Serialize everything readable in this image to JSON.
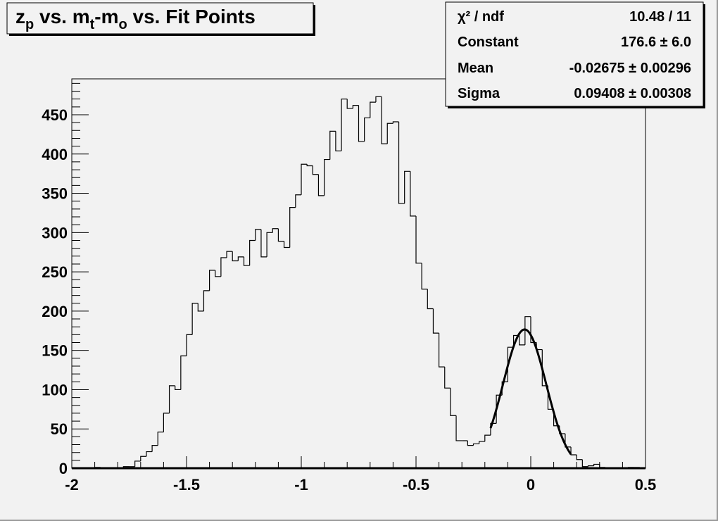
{
  "chart_data": {
    "type": "bar",
    "histogram": true,
    "title_segments": [
      {
        "text": "z",
        "sub": false
      },
      {
        "text": "p",
        "sub": true
      },
      {
        "text": " vs. m",
        "sub": false
      },
      {
        "text": "t",
        "sub": true
      },
      {
        "text": "-m",
        "sub": false
      },
      {
        "text": "o",
        "sub": true
      },
      {
        "text": " vs. Fit Points",
        "sub": false
      }
    ],
    "xlabel": "",
    "ylabel": "",
    "xlim": [
      -2,
      0.5
    ],
    "ylim": [
      0,
      495.7
    ],
    "bin_width": 0.025,
    "x_ticks": [
      "-2",
      "-1.5",
      "-1",
      "-0.5",
      "0",
      "0.5"
    ],
    "x_tick_values": [
      -2,
      -1.5,
      -1,
      -0.5,
      0,
      0.5
    ],
    "y_ticks": [
      "0",
      "50",
      "100",
      "150",
      "200",
      "250",
      "300",
      "350",
      "400",
      "450"
    ],
    "y_tick_values": [
      0,
      50,
      100,
      150,
      200,
      250,
      300,
      350,
      400,
      450
    ],
    "grid": false,
    "counts": [
      0,
      0,
      0,
      0,
      1,
      0,
      0,
      0,
      0,
      2,
      2,
      9,
      15,
      21,
      29,
      46,
      70,
      105,
      100,
      143,
      170,
      210,
      200,
      226,
      252,
      244,
      268,
      276,
      264,
      269,
      258,
      290,
      304,
      269,
      300,
      305,
      289,
      281,
      332,
      348,
      387,
      385,
      374,
      347,
      393,
      429,
      404,
      470,
      458,
      462,
      416,
      446,
      466,
      473,
      413,
      439,
      441,
      337,
      378,
      321,
      261,
      228,
      203,
      172,
      129,
      102,
      67,
      35,
      35,
      29,
      31,
      34,
      42,
      57,
      93,
      110,
      154,
      169,
      157,
      193,
      160,
      151,
      105,
      75,
      54,
      44,
      27,
      17,
      11,
      2,
      3,
      5,
      1,
      0,
      0,
      0,
      0,
      1,
      1,
      0
    ],
    "fit": {
      "function": "gaus",
      "constant": 176.6,
      "mean": -0.02675,
      "sigma": 0.09408,
      "range": [
        -0.175,
        0.175
      ]
    },
    "stats_box": {
      "placement": "top-right",
      "rows": [
        {
          "label": "χ² / ndf",
          "value": "10.48 / 11"
        },
        {
          "label": "Constant",
          "value": "176.6 ± 6.0"
        },
        {
          "label": "Mean",
          "value": "-0.02675 ± 0.00296"
        },
        {
          "label": "Sigma",
          "value": "0.09408 ± 0.00308"
        }
      ]
    },
    "colors": {
      "background": "#f2f2f2",
      "line": "#000000"
    }
  }
}
